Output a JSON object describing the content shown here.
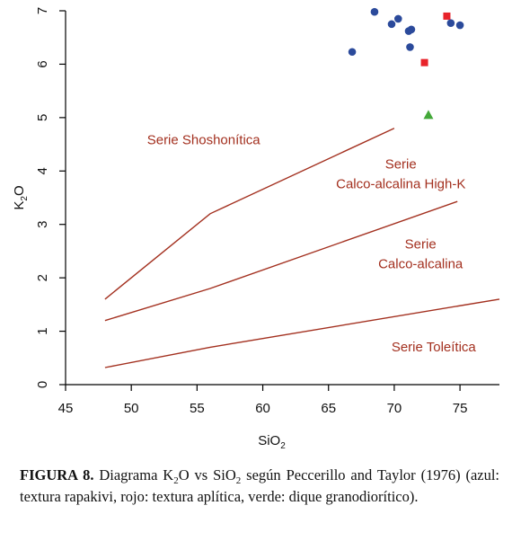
{
  "chart_data": {
    "type": "scatter",
    "title": "",
    "xlabel": {
      "base": "SiO",
      "sub": "2"
    },
    "ylabel": {
      "base": "K",
      "sub": "2",
      "tail": "O"
    },
    "xlim": [
      45,
      78
    ],
    "ylim": [
      0,
      7
    ],
    "x_ticks": [
      "45",
      "50",
      "55",
      "60",
      "65",
      "70",
      "75"
    ],
    "y_ticks": [
      "0",
      "1",
      "2",
      "3",
      "4",
      "5",
      "6",
      "7"
    ],
    "grid": false,
    "series": [
      {
        "marker": "circle",
        "color": "#2b4a9b",
        "points": [
          [
            66.8,
            6.23
          ],
          [
            68.5,
            6.98
          ],
          [
            69.8,
            6.75
          ],
          [
            70.3,
            6.85
          ],
          [
            71.1,
            6.62
          ],
          [
            71.3,
            6.65
          ],
          [
            71.2,
            6.32
          ],
          [
            74.3,
            6.77
          ],
          [
            75.0,
            6.73
          ]
        ]
      },
      {
        "marker": "square",
        "color": "#e8232a",
        "points": [
          [
            74.0,
            6.9
          ],
          [
            72.3,
            6.03
          ]
        ]
      },
      {
        "marker": "triangle",
        "color": "#43a839",
        "points": [
          [
            72.6,
            5.05
          ]
        ]
      }
    ],
    "boundary_lines": [
      {
        "color": "#a3301f",
        "points": [
          [
            48,
            1.6
          ],
          [
            56,
            3.2
          ],
          [
            70,
            4.8
          ]
        ]
      },
      {
        "color": "#a3301f",
        "points": [
          [
            48,
            1.2
          ],
          [
            56,
            1.8
          ],
          [
            74.8,
            3.43
          ]
        ]
      },
      {
        "color": "#a3301f",
        "points": [
          [
            48,
            0.32
          ],
          [
            56,
            0.7
          ],
          [
            78,
            1.6
          ]
        ]
      }
    ],
    "field_labels": [
      {
        "lines": [
          "Serie Shoshonítica"
        ],
        "x": 55.5,
        "y": 4.5,
        "align": "middle"
      },
      {
        "lines": [
          "Serie",
          "Calco-alcalina High-K"
        ],
        "x": 70.5,
        "y": 4.05,
        "align": "middle"
      },
      {
        "lines": [
          "Serie",
          "Calco-alcalina"
        ],
        "x": 72.0,
        "y": 2.55,
        "align": "middle"
      },
      {
        "lines": [
          "Serie Toleítica"
        ],
        "x": 73.0,
        "y": 0.62,
        "align": "middle"
      }
    ],
    "label_color": "#a3301f"
  },
  "caption": {
    "label": "FIGURA 8.",
    "p1": " Diagrama K",
    "p1_sub": "2",
    "p2": "O vs SiO",
    "p2_sub": "2",
    "p3": " según Peccerillo and Taylor (1976) (azul: textura rapakivi, rojo: textura aplítica, verde: dique granodiorítico)."
  }
}
